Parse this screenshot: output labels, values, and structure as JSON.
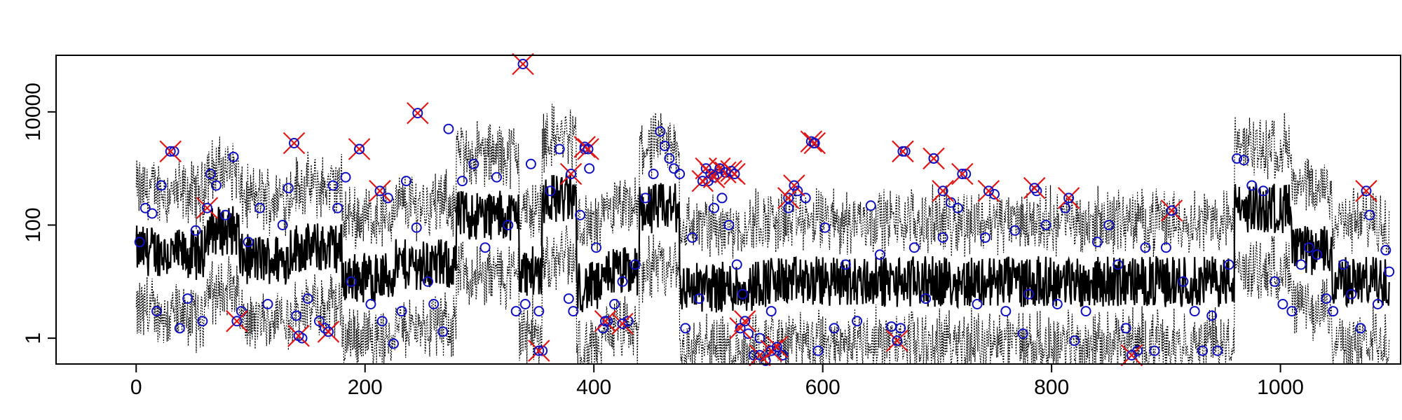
{
  "chart_data": {
    "type": "scatter",
    "title": "",
    "xlabel": "",
    "ylabel": "",
    "xlim": [
      -70,
      1105
    ],
    "ylim": [
      0.35,
      100000
    ],
    "y_scale": "log",
    "grid": false,
    "x_ticks": [
      0,
      200,
      400,
      600,
      800,
      1000
    ],
    "x_tick_labels": [
      "0",
      "200",
      "400",
      "600",
      "800",
      "1000"
    ],
    "y_ticks": [
      1,
      100,
      10000
    ],
    "y_tick_labels": [
      "1",
      "100",
      "10000"
    ],
    "colors": {
      "circle": "#1010c0",
      "cross": "#e01818",
      "band": "#000000",
      "line": "#000000"
    },
    "level_segments": [
      [
        0,
        25,
        35
      ],
      [
        25,
        60,
        30
      ],
      [
        60,
        90,
        80
      ],
      [
        90,
        135,
        25
      ],
      [
        135,
        180,
        40
      ],
      [
        180,
        225,
        12
      ],
      [
        225,
        280,
        20
      ],
      [
        280,
        335,
        150
      ],
      [
        335,
        355,
        15
      ],
      [
        355,
        385,
        300
      ],
      [
        385,
        410,
        8
      ],
      [
        410,
        440,
        15
      ],
      [
        440,
        475,
        200
      ],
      [
        475,
        540,
        8
      ],
      [
        540,
        960,
        10
      ],
      [
        960,
        1010,
        200
      ],
      [
        1010,
        1045,
        35
      ],
      [
        1045,
        1095,
        10
      ]
    ],
    "circles": [
      [
        3,
        50
      ],
      [
        8,
        200
      ],
      [
        14,
        160
      ],
      [
        18,
        3
      ],
      [
        22,
        500
      ],
      [
        33,
        2000
      ],
      [
        38,
        1.5
      ],
      [
        45,
        5
      ],
      [
        52,
        80
      ],
      [
        58,
        2
      ],
      [
        65,
        800
      ],
      [
        70,
        500
      ],
      [
        78,
        150
      ],
      [
        85,
        1600
      ],
      [
        92,
        3
      ],
      [
        98,
        50
      ],
      [
        108,
        200
      ],
      [
        115,
        4
      ],
      [
        128,
        100
      ],
      [
        133,
        450
      ],
      [
        140,
        2.5
      ],
      [
        145,
        1
      ],
      [
        150,
        5
      ],
      [
        160,
        2
      ],
      [
        165,
        1.5
      ],
      [
        172,
        500
      ],
      [
        176,
        200
      ],
      [
        183,
        700
      ],
      [
        188,
        10
      ],
      [
        195,
        2200
      ],
      [
        205,
        4
      ],
      [
        215,
        2
      ],
      [
        220,
        300
      ],
      [
        225,
        0.8
      ],
      [
        232,
        3
      ],
      [
        236,
        600
      ],
      [
        245,
        90
      ],
      [
        255,
        10
      ],
      [
        260,
        4
      ],
      [
        268,
        1.3
      ],
      [
        273,
        5000
      ],
      [
        285,
        600
      ],
      [
        295,
        1200
      ],
      [
        305,
        40
      ],
      [
        315,
        700
      ],
      [
        325,
        100
      ],
      [
        332,
        3
      ],
      [
        340,
        4
      ],
      [
        345,
        1200
      ],
      [
        352,
        3
      ],
      [
        355,
        0.6
      ],
      [
        362,
        400
      ],
      [
        370,
        2200
      ],
      [
        378,
        5
      ],
      [
        382,
        3
      ],
      [
        388,
        150
      ],
      [
        392,
        2200
      ],
      [
        396,
        1000
      ],
      [
        402,
        40
      ],
      [
        408,
        1.5
      ],
      [
        412,
        2
      ],
      [
        418,
        4
      ],
      [
        425,
        10
      ],
      [
        430,
        2
      ],
      [
        436,
        20
      ],
      [
        445,
        300
      ],
      [
        452,
        800
      ],
      [
        458,
        4500
      ],
      [
        462,
        2500
      ],
      [
        466,
        1500
      ],
      [
        470,
        1000
      ],
      [
        475,
        800
      ],
      [
        480,
        1.5
      ],
      [
        486,
        60
      ],
      [
        492,
        5
      ],
      [
        500,
        600
      ],
      [
        505,
        200
      ],
      [
        508,
        800
      ],
      [
        512,
        300
      ],
      [
        518,
        100
      ],
      [
        525,
        20
      ],
      [
        530,
        6
      ],
      [
        535,
        1.2
      ],
      [
        540,
        0.5
      ],
      [
        545,
        1
      ],
      [
        550,
        0.4
      ],
      [
        555,
        3
      ],
      [
        560,
        0.6
      ],
      [
        565,
        0.5
      ],
      [
        570,
        200
      ],
      [
        578,
        400
      ],
      [
        585,
        300
      ],
      [
        592,
        2800
      ],
      [
        596,
        0.6
      ],
      [
        602,
        90
      ],
      [
        610,
        1.5
      ],
      [
        620,
        20
      ],
      [
        630,
        2
      ],
      [
        642,
        220
      ],
      [
        650,
        30
      ],
      [
        660,
        1.6
      ],
      [
        668,
        1.5
      ],
      [
        672,
        2000
      ],
      [
        680,
        40
      ],
      [
        690,
        5
      ],
      [
        697,
        1500
      ],
      [
        705,
        60
      ],
      [
        712,
        250
      ],
      [
        718,
        200
      ],
      [
        725,
        800
      ],
      [
        735,
        4
      ],
      [
        742,
        60
      ],
      [
        750,
        350
      ],
      [
        760,
        3
      ],
      [
        768,
        80
      ],
      [
        775,
        1.2
      ],
      [
        780,
        6
      ],
      [
        787,
        400
      ],
      [
        795,
        100
      ],
      [
        805,
        4
      ],
      [
        812,
        200
      ],
      [
        820,
        0.9
      ],
      [
        830,
        3
      ],
      [
        840,
        50
      ],
      [
        850,
        100
      ],
      [
        858,
        20
      ],
      [
        865,
        1.5
      ],
      [
        875,
        0.6
      ],
      [
        882,
        40
      ],
      [
        890,
        0.6
      ],
      [
        900,
        40
      ],
      [
        905,
        180
      ],
      [
        915,
        10
      ],
      [
        925,
        3
      ],
      [
        932,
        0.6
      ],
      [
        940,
        2.5
      ],
      [
        945,
        0.6
      ],
      [
        955,
        20
      ],
      [
        962,
        1500
      ],
      [
        968,
        1400
      ],
      [
        975,
        500
      ],
      [
        985,
        400
      ],
      [
        995,
        10
      ],
      [
        1002,
        4
      ],
      [
        1010,
        3
      ],
      [
        1018,
        20
      ],
      [
        1025,
        40
      ],
      [
        1032,
        30
      ],
      [
        1040,
        5
      ],
      [
        1046,
        3
      ],
      [
        1055,
        20
      ],
      [
        1062,
        6
      ],
      [
        1070,
        1.5
      ],
      [
        1078,
        150
      ],
      [
        1085,
        4
      ],
      [
        1092,
        36
      ],
      [
        1095,
        15
      ]
    ],
    "crosses": [
      [
        30,
        2000
      ],
      [
        62,
        200
      ],
      [
        88,
        2
      ],
      [
        138,
        2800
      ],
      [
        142,
        1.1
      ],
      [
        168,
        1.3
      ],
      [
        195,
        2200
      ],
      [
        213,
        400
      ],
      [
        246,
        9500
      ],
      [
        338,
        70000
      ],
      [
        352,
        0.6
      ],
      [
        380,
        800
      ],
      [
        392,
        2400
      ],
      [
        395,
        2200
      ],
      [
        410,
        2
      ],
      [
        425,
        1.8
      ],
      [
        495,
        600
      ],
      [
        498,
        1000
      ],
      [
        502,
        800
      ],
      [
        505,
        700
      ],
      [
        510,
        1000
      ],
      [
        515,
        850
      ],
      [
        520,
        900
      ],
      [
        523,
        800
      ],
      [
        528,
        1.5
      ],
      [
        532,
        2
      ],
      [
        545,
        0.5
      ],
      [
        555,
        0.6
      ],
      [
        560,
        0.7
      ],
      [
        570,
        300
      ],
      [
        575,
        500
      ],
      [
        590,
        3000
      ],
      [
        593,
        2800
      ],
      [
        665,
        0.9
      ],
      [
        670,
        2000
      ],
      [
        697,
        1500
      ],
      [
        705,
        400
      ],
      [
        722,
        800
      ],
      [
        745,
        400
      ],
      [
        785,
        450
      ],
      [
        815,
        300
      ],
      [
        870,
        0.5
      ],
      [
        905,
        180
      ],
      [
        1075,
        400
      ]
    ]
  }
}
